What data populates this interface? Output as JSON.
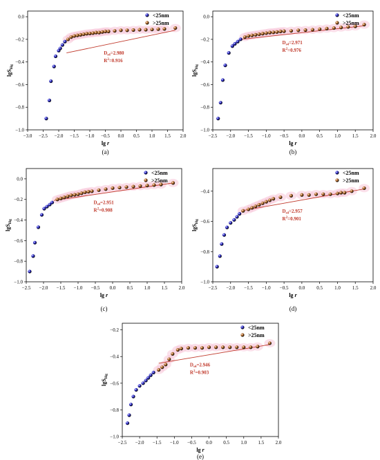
{
  "chart_data": [
    {
      "type": "scatter",
      "panel_label": "(a)",
      "xlabel": "lg r",
      "ylabel": "lgS",
      "ylabel_sub": "Hg",
      "xlim": [
        -3.0,
        2.0
      ],
      "ylim": [
        -1.0,
        0.05
      ],
      "xticks": [
        -3.0,
        -2.5,
        -2.0,
        -1.5,
        -1.0,
        -0.5,
        0.0,
        0.5,
        1.0,
        1.5,
        2.0
      ],
      "yticks": [
        -1.0,
        -0.8,
        -0.6,
        -0.4,
        -0.2,
        0.0
      ],
      "legend": [
        {
          "label": "<25nm",
          "color": "#2222cc"
        },
        {
          "label": ">25nm",
          "color": "#b5651d"
        }
      ],
      "annotation": {
        "d_label": "D",
        "d_sub": "s4",
        "d_value": "=2.980",
        "r_label": "R",
        "r_sup": "2",
        "r_value": "=0.916"
      },
      "series": [
        {
          "name": "<25nm",
          "color": "#2222cc",
          "points": [
            [
              -2.4,
              -0.9
            ],
            [
              -2.3,
              -0.74
            ],
            [
              -2.25,
              -0.57
            ],
            [
              -2.15,
              -0.44
            ],
            [
              -2.1,
              -0.35
            ],
            [
              -2.0,
              -0.3
            ],
            [
              -1.95,
              -0.28
            ],
            [
              -1.88,
              -0.25
            ],
            [
              -1.8,
              -0.22
            ]
          ]
        },
        {
          "name": ">25nm",
          "color": "#b5651d",
          "points": [
            [
              -1.7,
              -0.2
            ],
            [
              -1.6,
              -0.18
            ],
            [
              -1.5,
              -0.17
            ],
            [
              -1.4,
              -0.165
            ],
            [
              -1.3,
              -0.16
            ],
            [
              -1.2,
              -0.155
            ],
            [
              -1.1,
              -0.15
            ],
            [
              -1.0,
              -0.148
            ],
            [
              -0.9,
              -0.145
            ],
            [
              -0.8,
              -0.14
            ],
            [
              -0.7,
              -0.14
            ],
            [
              -0.6,
              -0.135
            ],
            [
              -0.5,
              -0.13
            ],
            [
              -0.4,
              -0.13
            ],
            [
              -0.2,
              -0.125
            ],
            [
              0.0,
              -0.12
            ],
            [
              0.2,
              -0.12
            ],
            [
              0.4,
              -0.118
            ],
            [
              0.6,
              -0.115
            ],
            [
              0.8,
              -0.115
            ],
            [
              1.0,
              -0.113
            ],
            [
              1.2,
              -0.11
            ],
            [
              1.4,
              -0.108
            ],
            [
              1.75,
              -0.1
            ]
          ]
        }
      ],
      "fit": {
        "x": [
          -1.75,
          1.75
        ],
        "y": [
          -0.32,
          -0.12
        ]
      }
    },
    {
      "type": "scatter",
      "panel_label": "(b)",
      "xlabel": "lg r",
      "ylabel": "lgS",
      "ylabel_sub": "Hg",
      "xlim": [
        -2.5,
        2.0
      ],
      "ylim": [
        -1.0,
        0.05
      ],
      "xticks": [
        -2.5,
        -2.0,
        -1.5,
        -1.0,
        -0.5,
        0.0,
        0.5,
        1.0,
        1.5,
        2.0
      ],
      "yticks": [
        -1.0,
        -0.8,
        -0.6,
        -0.4,
        -0.2,
        0.0
      ],
      "legend": [
        {
          "label": "<25nm",
          "color": "#2222cc"
        },
        {
          "label": ">25nm",
          "color": "#b5651d"
        }
      ],
      "annotation": {
        "d_label": "D",
        "d_sub": "s4",
        "d_value": "=2.971",
        "r_label": "R",
        "r_sup": "2",
        "r_value": "=0.976"
      },
      "series": [
        {
          "name": "<25nm",
          "color": "#2222cc",
          "points": [
            [
              -2.35,
              -0.9
            ],
            [
              -2.28,
              -0.76
            ],
            [
              -2.22,
              -0.56
            ],
            [
              -2.15,
              -0.43
            ],
            [
              -2.05,
              -0.32
            ],
            [
              -1.95,
              -0.26
            ],
            [
              -1.88,
              -0.24
            ],
            [
              -1.8,
              -0.22
            ],
            [
              -1.72,
              -0.2
            ]
          ]
        },
        {
          "name": ">25nm",
          "color": "#b5651d",
          "points": [
            [
              -1.6,
              -0.18
            ],
            [
              -1.5,
              -0.17
            ],
            [
              -1.4,
              -0.165
            ],
            [
              -1.3,
              -0.16
            ],
            [
              -1.2,
              -0.155
            ],
            [
              -1.1,
              -0.15
            ],
            [
              -1.0,
              -0.145
            ],
            [
              -0.9,
              -0.14
            ],
            [
              -0.8,
              -0.138
            ],
            [
              -0.7,
              -0.135
            ],
            [
              -0.6,
              -0.13
            ],
            [
              -0.5,
              -0.128
            ],
            [
              -0.3,
              -0.125
            ],
            [
              -0.1,
              -0.12
            ],
            [
              0.1,
              -0.118
            ],
            [
              0.3,
              -0.115
            ],
            [
              0.5,
              -0.11
            ],
            [
              0.7,
              -0.105
            ],
            [
              0.9,
              -0.1
            ],
            [
              1.1,
              -0.095
            ],
            [
              1.3,
              -0.09
            ],
            [
              1.5,
              -0.085
            ],
            [
              1.75,
              -0.07
            ]
          ]
        }
      ],
      "fit": {
        "x": [
          -1.7,
          1.75
        ],
        "y": [
          -0.2,
          -0.08
        ]
      }
    },
    {
      "type": "scatter",
      "panel_label": "(c)",
      "xlabel": "lg r",
      "ylabel": "lgS",
      "ylabel_sub": "Hg",
      "xlim": [
        -2.5,
        2.0
      ],
      "ylim": [
        -1.0,
        0.1
      ],
      "xticks": [
        -2.5,
        -2.0,
        -1.5,
        -1.0,
        -0.5,
        0.0,
        0.5,
        1.0,
        1.5,
        2.0
      ],
      "yticks": [
        -1.0,
        -0.8,
        -0.6,
        -0.4,
        -0.2,
        0.0
      ],
      "legend": [
        {
          "label": "<25nm",
          "color": "#2222cc"
        },
        {
          "label": ">25nm",
          "color": "#b5651d"
        }
      ],
      "annotation": {
        "d_label": "D",
        "d_sub": "s4",
        "d_value": "=2.951",
        "r_label": "R",
        "r_sup": "2",
        "r_value": "=0.908"
      },
      "series": [
        {
          "name": "<25nm",
          "color": "#2222cc",
          "points": [
            [
              -2.4,
              -0.9
            ],
            [
              -2.3,
              -0.75
            ],
            [
              -2.25,
              -0.62
            ],
            [
              -2.15,
              -0.47
            ],
            [
              -2.05,
              -0.35
            ],
            [
              -1.98,
              -0.29
            ],
            [
              -1.9,
              -0.27
            ],
            [
              -1.82,
              -0.25
            ],
            [
              -1.75,
              -0.23
            ]
          ]
        },
        {
          "name": ">25nm",
          "color": "#b5651d",
          "points": [
            [
              -1.6,
              -0.2
            ],
            [
              -1.5,
              -0.19
            ],
            [
              -1.4,
              -0.18
            ],
            [
              -1.3,
              -0.17
            ],
            [
              -1.2,
              -0.16
            ],
            [
              -1.1,
              -0.155
            ],
            [
              -1.0,
              -0.15
            ],
            [
              -0.9,
              -0.14
            ],
            [
              -0.8,
              -0.13
            ],
            [
              -0.7,
              -0.125
            ],
            [
              -0.6,
              -0.12
            ],
            [
              -0.4,
              -0.11
            ],
            [
              -0.2,
              -0.1
            ],
            [
              0.0,
              -0.09
            ],
            [
              0.2,
              -0.085
            ],
            [
              0.4,
              -0.08
            ],
            [
              0.6,
              -0.075
            ],
            [
              0.8,
              -0.07
            ],
            [
              1.0,
              -0.065
            ],
            [
              1.2,
              -0.06
            ],
            [
              1.4,
              -0.055
            ],
            [
              1.75,
              -0.04
            ]
          ]
        }
      ],
      "fit": {
        "x": [
          -1.7,
          1.75
        ],
        "y": [
          -0.21,
          -0.04
        ]
      }
    },
    {
      "type": "scatter",
      "panel_label": "(d)",
      "xlabel": "lg r",
      "ylabel": "lgS",
      "ylabel_sub": "Hg",
      "xlim": [
        -2.5,
        2.0
      ],
      "ylim": [
        -1.0,
        -0.25
      ],
      "xticks": [
        -2.5,
        -2.0,
        -1.5,
        -1.0,
        -0.5,
        0.0,
        0.5,
        1.0,
        1.5,
        2.0
      ],
      "yticks": [
        -1.0,
        -0.8,
        -0.6,
        -0.4
      ],
      "legend": [
        {
          "label": "<25nm",
          "color": "#2222cc"
        },
        {
          "label": ">25nm",
          "color": "#b5651d"
        }
      ],
      "annotation": {
        "d_label": "D",
        "d_sub": "s4",
        "d_value": "=2.957",
        "r_label": "R",
        "r_sup": "2",
        "r_value": "=0.901"
      },
      "series": [
        {
          "name": "<25nm",
          "color": "#2222cc",
          "points": [
            [
              -2.38,
              -0.9
            ],
            [
              -2.3,
              -0.83
            ],
            [
              -2.25,
              -0.75
            ],
            [
              -2.18,
              -0.69
            ],
            [
              -2.1,
              -0.64
            ],
            [
              -2.0,
              -0.61
            ],
            [
              -1.9,
              -0.59
            ],
            [
              -1.82,
              -0.57
            ],
            [
              -1.75,
              -0.55
            ]
          ]
        },
        {
          "name": ">25nm",
          "color": "#b5651d",
          "points": [
            [
              -1.65,
              -0.53
            ],
            [
              -1.5,
              -0.52
            ],
            [
              -1.4,
              -0.51
            ],
            [
              -1.3,
              -0.5
            ],
            [
              -1.2,
              -0.49
            ],
            [
              -1.1,
              -0.48
            ],
            [
              -1.0,
              -0.47
            ],
            [
              -0.9,
              -0.46
            ],
            [
              -0.8,
              -0.45
            ],
            [
              -0.6,
              -0.44
            ],
            [
              -0.3,
              -0.43
            ],
            [
              0.0,
              -0.425
            ],
            [
              0.2,
              -0.425
            ],
            [
              0.4,
              -0.42
            ],
            [
              0.6,
              -0.42
            ],
            [
              0.8,
              -0.42
            ],
            [
              1.0,
              -0.415
            ],
            [
              1.1,
              -0.41
            ],
            [
              1.2,
              -0.41
            ],
            [
              1.4,
              -0.4
            ],
            [
              1.75,
              -0.38
            ]
          ]
        }
      ],
      "fit": {
        "x": [
          -1.7,
          1.75
        ],
        "y": [
          -0.53,
          -0.385
        ]
      }
    },
    {
      "type": "scatter",
      "panel_label": "(e)",
      "xlabel": "lg r",
      "ylabel": "lgS",
      "ylabel_sub": "Hg",
      "xlim": [
        -2.5,
        2.0
      ],
      "ylim": [
        -1.0,
        -0.15
      ],
      "xticks": [
        -2.5,
        -2.0,
        -1.5,
        -1.0,
        -0.5,
        0.0,
        0.5,
        1.0,
        1.5,
        2.0
      ],
      "yticks": [
        -1.0,
        -0.8,
        -0.6,
        -0.4,
        -0.2
      ],
      "legend": [
        {
          "label": "<25nm",
          "color": "#2222cc"
        },
        {
          "label": ">25nm",
          "color": "#b5651d"
        }
      ],
      "annotation": {
        "d_label": "D",
        "d_sub": "s4",
        "d_value": "=2.946",
        "r_label": "R",
        "r_sup": "2",
        "r_value": "=0.903"
      },
      "series": [
        {
          "name": "<25nm",
          "color": "#2222cc",
          "points": [
            [
              -2.35,
              -0.9
            ],
            [
              -2.3,
              -0.84
            ],
            [
              -2.25,
              -0.76
            ],
            [
              -2.18,
              -0.7
            ],
            [
              -2.1,
              -0.65
            ],
            [
              -2.0,
              -0.62
            ],
            [
              -1.9,
              -0.6
            ],
            [
              -1.82,
              -0.58
            ],
            [
              -1.75,
              -0.56
            ],
            [
              -1.68,
              -0.54
            ],
            [
              -1.6,
              -0.52
            ]
          ]
        },
        {
          "name": ">25nm",
          "color": "#b5651d",
          "points": [
            [
              -1.45,
              -0.5
            ],
            [
              -1.35,
              -0.48
            ],
            [
              -1.25,
              -0.46
            ],
            [
              -1.15,
              -0.42
            ],
            [
              -1.05,
              -0.38
            ],
            [
              -0.9,
              -0.35
            ],
            [
              -0.8,
              -0.34
            ],
            [
              -0.6,
              -0.335
            ],
            [
              -0.4,
              -0.335
            ],
            [
              -0.2,
              -0.335
            ],
            [
              0.0,
              -0.33
            ],
            [
              0.2,
              -0.33
            ],
            [
              0.4,
              -0.33
            ],
            [
              0.6,
              -0.33
            ],
            [
              0.8,
              -0.33
            ],
            [
              1.0,
              -0.33
            ],
            [
              1.2,
              -0.33
            ],
            [
              1.4,
              -0.325
            ],
            [
              1.75,
              -0.3
            ]
          ]
        }
      ],
      "fit": {
        "x": [
          -1.45,
          1.75
        ],
        "y": [
          -0.45,
          -0.31
        ]
      }
    }
  ]
}
